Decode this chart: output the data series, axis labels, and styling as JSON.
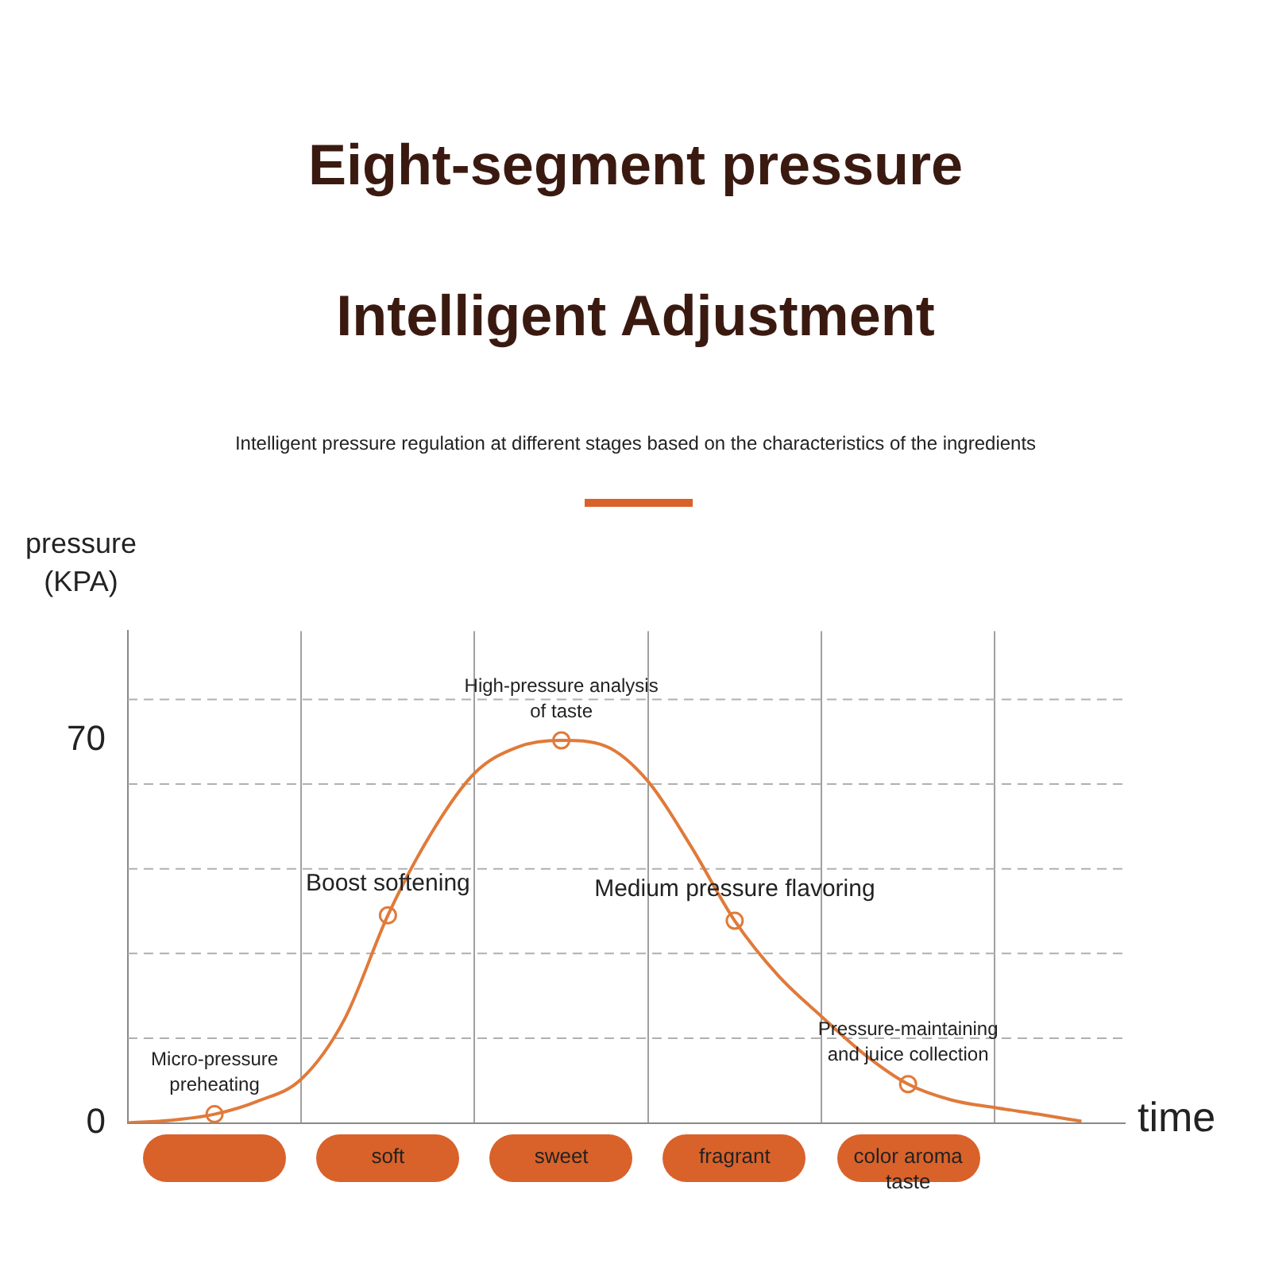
{
  "chart_data": {
    "type": "line",
    "title": "Eight-segment pressure",
    "subtitle": "Intelligent Adjustment",
    "annotations": [
      "Intelligent pressure regulation at different stages based on the characteristics of the ingredients",
      {
        "text": "Micro-pressure\npreheating",
        "y": 1.6
      },
      {
        "text": "Boost softening",
        "x": "soft",
        "y": 38
      },
      {
        "text": "High-pressure analysis\nof taste",
        "x": "sweet",
        "y": 70
      },
      {
        "text": "Medium pressure flavoring",
        "x": "fragrant",
        "y": 37
      },
      {
        "text": "Pressure-maintaining\nand juice collection",
        "x": "color aroma\ntaste",
        "y": 7.1
      }
    ],
    "xlabel": "time",
    "ylabel": "pressure\n(KPA)",
    "categories": [
      null,
      null,
      null,
      null,
      null,
      null,
      "soft",
      null,
      null,
      null,
      "sweet",
      null,
      null,
      null,
      "fragrant",
      null,
      null,
      null,
      "color aroma\ntaste",
      null,
      null,
      null,
      null,
      null
    ],
    "ylim": [
      0,
      90
    ],
    "yticks": [
      0,
      70
    ],
    "grid": "x",
    "ref_lines": [
      {
        "axis": "y",
        "value": 15.5,
        "color": "#b0b0b0",
        "line_style": "dashed"
      },
      {
        "axis": "y",
        "value": 31,
        "color": "#b0b0b0",
        "line_style": "dashed"
      },
      {
        "axis": "y",
        "value": 46.5,
        "color": "#b0b0b0",
        "line_style": "dashed"
      },
      {
        "axis": "y",
        "value": 62,
        "color": "#b0b0b0",
        "line_style": "dashed"
      },
      {
        "axis": "y",
        "value": 77.5,
        "color": "#b0b0b0",
        "line_style": "dashed"
      }
    ],
    "series": [
      {
        "marker": "none",
        "color": "#e07a3a",
        "values": [
          0,
          0.5,
          1.6,
          4,
          8,
          19,
          38,
          53,
          64,
          68.8,
          70,
          69,
          62.5,
          50.5,
          37,
          27,
          19.5,
          12.5,
          7.1,
          4.2,
          2.8,
          1.6,
          0.3,
          null
        ]
      },
      {
        "type": "scatter",
        "marker": "circle",
        "color": "#e07a3a",
        "values": [
          null,
          null,
          1.6,
          null,
          null,
          null,
          38,
          null,
          null,
          null,
          70,
          null,
          null,
          null,
          37,
          null,
          null,
          null,
          7.1,
          null,
          null,
          null,
          null,
          null
        ]
      }
    ]
  }
}
